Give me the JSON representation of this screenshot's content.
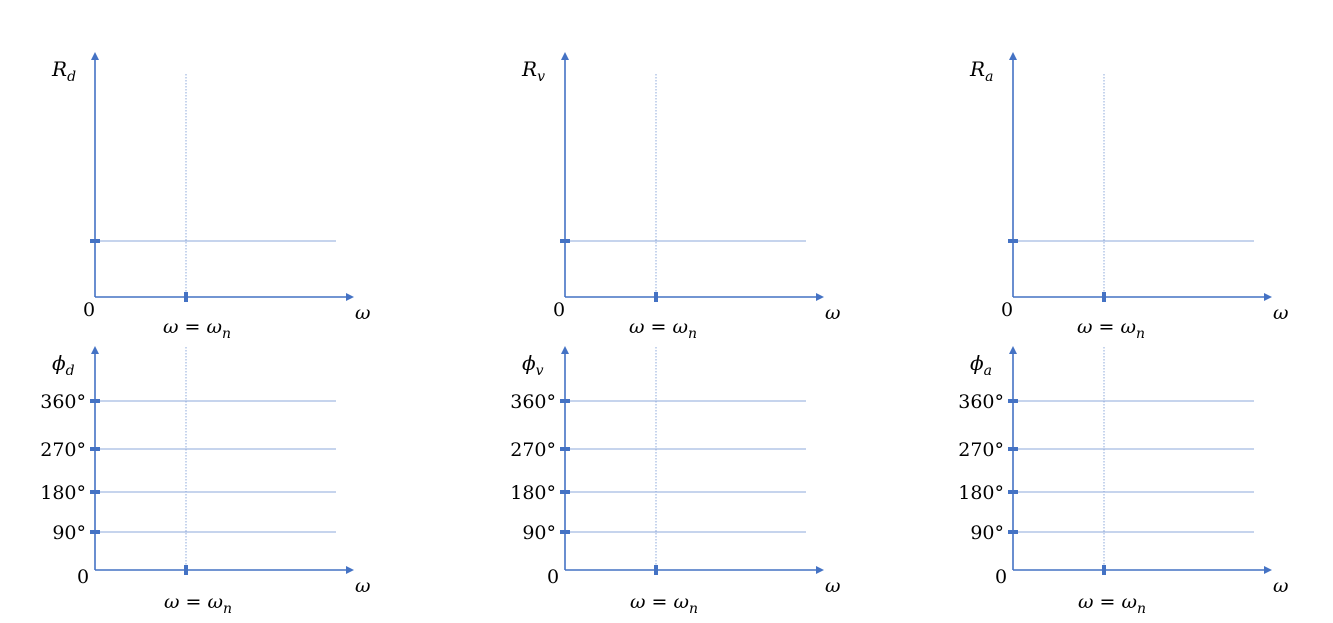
{
  "colors": {
    "axis": "#4472C4",
    "grid": "#8EA9DB",
    "text": "#000000"
  },
  "x_axis_label": "ω",
  "origin_label": "0",
  "resonance_label": {
    "lhs": "ω",
    "eq": " = ",
    "rhs": "ω",
    "sub": "n"
  },
  "magnitude_plots": [
    {
      "id": "displacement",
      "ylabel": "R",
      "ysub": "d"
    },
    {
      "id": "velocity",
      "ylabel": "R",
      "ysub": "v"
    },
    {
      "id": "acceleration",
      "ylabel": "R",
      "ysub": "a"
    }
  ],
  "phase_plots": [
    {
      "id": "displacement",
      "ylabel": "ϕ",
      "ysub": "d"
    },
    {
      "id": "velocity",
      "ylabel": "ϕ",
      "ysub": "v"
    },
    {
      "id": "acceleration",
      "ylabel": "ϕ",
      "ysub": "a"
    }
  ],
  "phase_ticks": [
    "90°",
    "180°",
    "270°",
    "360°"
  ]
}
